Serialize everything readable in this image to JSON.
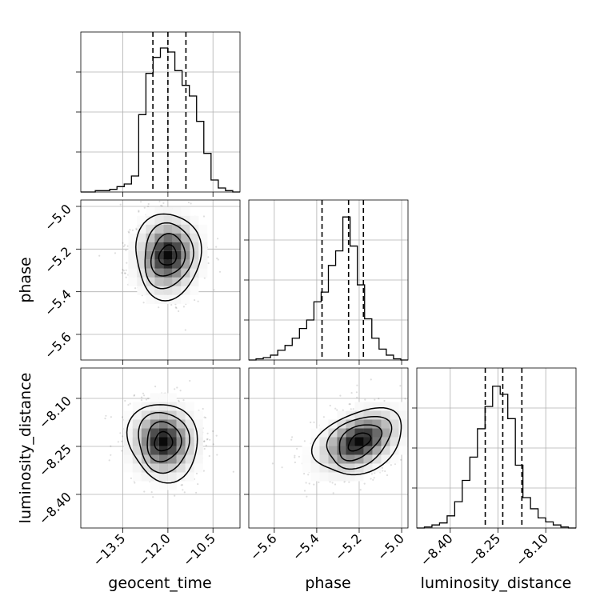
{
  "chart_data": {
    "type": "corner",
    "parameters": [
      "geocent_time",
      "phase",
      "luminosity_distance"
    ],
    "axis_labels": {
      "x": [
        "geocent_time",
        "phase",
        "luminosity_distance"
      ],
      "y": [
        "",
        "phase",
        "luminosity_distance"
      ]
    },
    "ranges": {
      "geocent_time": [
        -14.9,
        -9.6
      ],
      "phase": [
        -5.72,
        -4.97
      ],
      "luminosity_distance": [
        -8.505,
        -8.005
      ]
    },
    "ticks": {
      "geocent_time": {
        "values": [
          -13.5,
          -12.0,
          -10.5
        ],
        "labels": [
          "−13.5",
          "−12.0",
          "−10.5"
        ]
      },
      "phase": {
        "values": [
          -5.6,
          -5.4,
          -5.2,
          -5.0
        ],
        "labels": [
          "−5.6",
          "−5.4",
          "−5.2",
          "−5.0"
        ]
      },
      "luminosity_distance": {
        "values": [
          -8.4,
          -8.25,
          -8.1
        ],
        "labels": [
          "−8.40",
          "−8.25",
          "−8.10"
        ]
      }
    },
    "quantiles": {
      "geocent_time": [
        -12.5,
        -12.0,
        -11.4
      ],
      "phase": [
        -5.375,
        -5.25,
        -5.18
      ],
      "luminosity_distance": [
        -8.29,
        -8.235,
        -8.175
      ]
    },
    "histograms": {
      "geocent_time": {
        "bin_start": -14.9,
        "bin_end": -9.6,
        "counts": [
          0,
          0,
          1,
          1,
          2,
          4,
          6,
          12,
          58,
          89,
          101,
          108,
          105,
          91,
          80,
          72,
          53,
          29,
          9,
          3,
          1,
          0
        ],
        "ymax": 120
      },
      "phase": {
        "bin_start": -5.72,
        "bin_end": -4.97,
        "counts": [
          0,
          1,
          2,
          4,
          8,
          12,
          18,
          26,
          33,
          48,
          56,
          78,
          90,
          118,
          94,
          62,
          34,
          18,
          9,
          4,
          1,
          0
        ],
        "ymax": 132
      },
      "luminosity_distance": {
        "bin_start": -8.505,
        "bin_end": -8.005,
        "counts": [
          0,
          1,
          3,
          5,
          12,
          26,
          47,
          70,
          98,
          120,
          140,
          132,
          108,
          62,
          30,
          19,
          10,
          6,
          3,
          1,
          0
        ],
        "ymax": 158
      }
    },
    "joint_centers": {
      "phase_vs_geocent_time": [
        -12.0,
        -5.23
      ],
      "luminosity_distance_vs_geocent_time": [
        -12.15,
        -8.235
      ],
      "luminosity_distance_vs_phase": [
        -5.2,
        -8.235
      ]
    },
    "grid": true
  }
}
